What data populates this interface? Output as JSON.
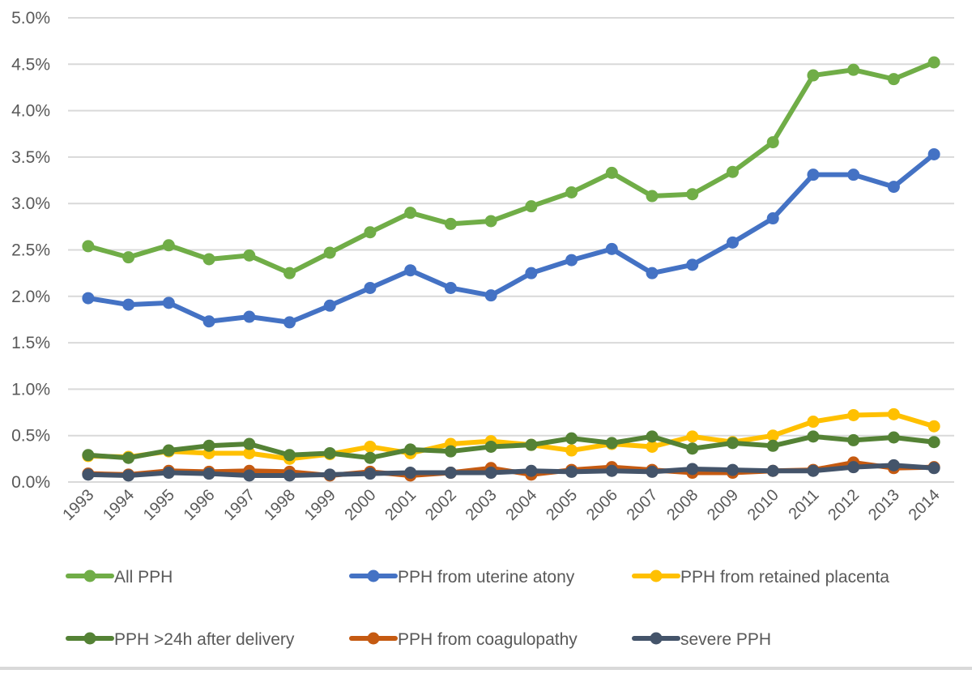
{
  "chart_data": {
    "type": "line",
    "title": "",
    "xlabel": "",
    "ylabel": "",
    "ylim": [
      0,
      5.0
    ],
    "y_unit": "%",
    "y_ticks": [
      "0.0%",
      "0.5%",
      "1.0%",
      "1.5%",
      "2.0%",
      "2.5%",
      "3.0%",
      "3.5%",
      "4.0%",
      "4.5%",
      "5.0%"
    ],
    "y_tick_values": [
      0,
      0.5,
      1.0,
      1.5,
      2.0,
      2.5,
      3.0,
      3.5,
      4.0,
      4.5,
      5.0
    ],
    "grid": "horizontal",
    "legend_position": "bottom",
    "categories": [
      "1993",
      "1994",
      "1995",
      "1996",
      "1997",
      "1998",
      "1999",
      "2000",
      "2001",
      "2002",
      "2003",
      "2004",
      "2005",
      "2006",
      "2007",
      "2008",
      "2009",
      "2010",
      "2011",
      "2012",
      "2013",
      "2014"
    ],
    "series": [
      {
        "name": "All PPH",
        "color": "#70AD47",
        "values": [
          2.54,
          2.42,
          2.55,
          2.4,
          2.44,
          2.25,
          2.47,
          2.69,
          2.9,
          2.78,
          2.81,
          2.97,
          3.12,
          3.33,
          3.08,
          3.1,
          3.34,
          3.66,
          4.38,
          4.44,
          4.34,
          4.52
        ]
      },
      {
        "name": "PPH from uterine atony",
        "color": "#4472C4",
        "values": [
          1.98,
          1.91,
          1.93,
          1.73,
          1.78,
          1.72,
          1.9,
          2.09,
          2.28,
          2.09,
          2.01,
          2.25,
          2.39,
          2.51,
          2.25,
          2.34,
          2.58,
          2.84,
          3.31,
          3.31,
          3.18,
          3.53
        ]
      },
      {
        "name": "PPH from retained placenta",
        "color": "#FFC000",
        "values": [
          0.28,
          0.27,
          0.33,
          0.31,
          0.31,
          0.25,
          0.3,
          0.38,
          0.31,
          0.41,
          0.44,
          0.4,
          0.34,
          0.41,
          0.38,
          0.49,
          0.43,
          0.5,
          0.65,
          0.72,
          0.73,
          0.6
        ]
      },
      {
        "name": "PPH >24h after delivery",
        "color": "#548235",
        "values": [
          0.29,
          0.26,
          0.34,
          0.39,
          0.41,
          0.29,
          0.31,
          0.26,
          0.35,
          0.33,
          0.38,
          0.4,
          0.47,
          0.42,
          0.49,
          0.36,
          0.42,
          0.39,
          0.49,
          0.45,
          0.48,
          0.43
        ]
      },
      {
        "name": "PPH from coagulopathy",
        "color": "#C55A11",
        "values": [
          0.09,
          0.08,
          0.12,
          0.11,
          0.12,
          0.11,
          0.07,
          0.11,
          0.07,
          0.1,
          0.15,
          0.08,
          0.13,
          0.16,
          0.13,
          0.1,
          0.1,
          0.12,
          0.13,
          0.21,
          0.15,
          0.16
        ]
      },
      {
        "name": "severe PPH",
        "color": "#44546A",
        "values": [
          0.08,
          0.07,
          0.1,
          0.09,
          0.07,
          0.07,
          0.08,
          0.09,
          0.1,
          0.1,
          0.1,
          0.12,
          0.11,
          0.12,
          0.11,
          0.14,
          0.13,
          0.12,
          0.12,
          0.16,
          0.18,
          0.15
        ]
      }
    ],
    "gridline_color": "#D9D9D9",
    "text_color": "#595959"
  }
}
